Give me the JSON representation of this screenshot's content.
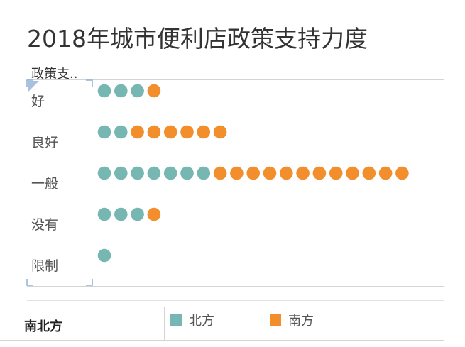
{
  "title": "2018年城市便利店政策支持力度",
  "chart_data": {
    "type": "scatter",
    "subtype": "dot-count",
    "title": "2018年城市便利店政策支持力度",
    "row_header": "政策支..",
    "categories": [
      "好",
      "良好",
      "一般",
      "没有",
      "限制"
    ],
    "series": [
      {
        "name": "北方",
        "color": "#76b7b2",
        "values": [
          3,
          2,
          7,
          3,
          1
        ]
      },
      {
        "name": "南方",
        "color": "#f28e2b",
        "values": [
          1,
          6,
          12,
          1,
          0
        ]
      }
    ],
    "legend": {
      "field": "南北方",
      "placement": "bottom"
    },
    "grid": false
  }
}
